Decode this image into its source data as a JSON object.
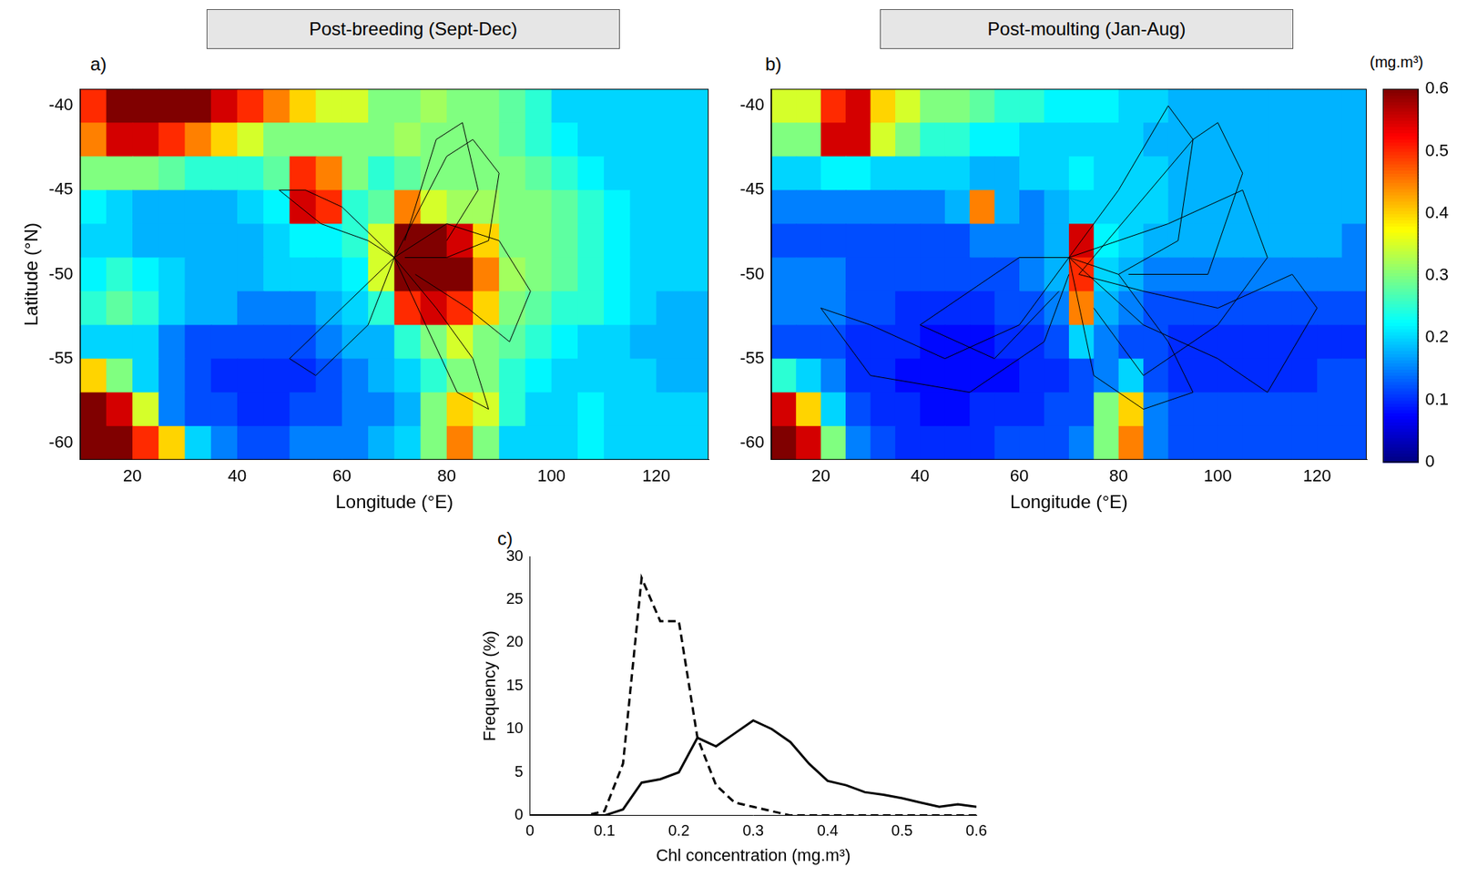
{
  "chart_data": [
    {
      "type": "heatmap",
      "panel": "a)",
      "title": "Post-breeding (Sept-Dec)",
      "x_label": "Longitude (°E)",
      "y_label": "Latitude (°N)",
      "xlim": [
        10,
        130
      ],
      "xticks": [
        20,
        40,
        60,
        80,
        100,
        120
      ],
      "ylim": [
        -61,
        -39
      ],
      "yticks": [
        -40,
        -45,
        -50,
        -55,
        -60
      ],
      "grid": false,
      "lon_edges": [
        10,
        15,
        20,
        25,
        30,
        35,
        40,
        45,
        50,
        55,
        60,
        65,
        70,
        75,
        80,
        85,
        90,
        95,
        100,
        105,
        110,
        115,
        120,
        125,
        130
      ],
      "lat_edges": [
        -39,
        -41,
        -43,
        -45,
        -47,
        -49,
        -51,
        -53,
        -55,
        -57,
        -59,
        -61
      ],
      "cells": [
        [
          0.5,
          0.6,
          0.6,
          0.6,
          0.6,
          0.55,
          0.5,
          0.45,
          0.4,
          0.35,
          0.35,
          0.3,
          0.3,
          0.32,
          0.3,
          0.3,
          0.28,
          0.25,
          0.2,
          0.2,
          0.2,
          0.2,
          0.2,
          0.2
        ],
        [
          0.45,
          0.55,
          0.55,
          0.5,
          0.45,
          0.4,
          0.35,
          0.3,
          0.3,
          0.3,
          0.3,
          0.3,
          0.32,
          0.3,
          0.3,
          0.3,
          0.28,
          0.25,
          0.22,
          0.2,
          0.2,
          0.2,
          0.2,
          0.2
        ],
        [
          0.3,
          0.3,
          0.3,
          0.28,
          0.25,
          0.25,
          0.25,
          0.28,
          0.5,
          0.45,
          0.3,
          0.25,
          0.28,
          0.3,
          0.3,
          0.3,
          0.3,
          0.28,
          0.25,
          0.22,
          0.2,
          0.2,
          0.2,
          0.2
        ],
        [
          0.22,
          0.2,
          0.18,
          0.18,
          0.18,
          0.18,
          0.2,
          0.22,
          0.55,
          0.5,
          0.25,
          0.28,
          0.45,
          0.35,
          0.32,
          0.32,
          0.3,
          0.3,
          0.28,
          0.25,
          0.22,
          0.2,
          0.2,
          0.2
        ],
        [
          0.2,
          0.2,
          0.18,
          0.18,
          0.18,
          0.18,
          0.18,
          0.2,
          0.22,
          0.22,
          0.25,
          0.35,
          0.6,
          0.6,
          0.55,
          0.4,
          0.3,
          0.3,
          0.28,
          0.25,
          0.22,
          0.2,
          0.2,
          0.2
        ],
        [
          0.22,
          0.25,
          0.22,
          0.2,
          0.18,
          0.18,
          0.18,
          0.2,
          0.2,
          0.2,
          0.22,
          0.35,
          0.6,
          0.6,
          0.6,
          0.45,
          0.32,
          0.3,
          0.28,
          0.25,
          0.22,
          0.2,
          0.2,
          0.2
        ],
        [
          0.25,
          0.28,
          0.25,
          0.2,
          0.18,
          0.18,
          0.15,
          0.15,
          0.15,
          0.18,
          0.2,
          0.25,
          0.5,
          0.55,
          0.5,
          0.4,
          0.3,
          0.28,
          0.25,
          0.25,
          0.22,
          0.2,
          0.18,
          0.18
        ],
        [
          0.2,
          0.2,
          0.2,
          0.15,
          0.12,
          0.12,
          0.12,
          0.12,
          0.12,
          0.15,
          0.18,
          0.18,
          0.25,
          0.3,
          0.35,
          0.3,
          0.28,
          0.25,
          0.22,
          0.2,
          0.2,
          0.18,
          0.18,
          0.18
        ],
        [
          0.4,
          0.3,
          0.2,
          0.15,
          0.12,
          0.1,
          0.1,
          0.1,
          0.1,
          0.12,
          0.15,
          0.18,
          0.2,
          0.25,
          0.3,
          0.3,
          0.25,
          0.22,
          0.2,
          0.2,
          0.2,
          0.2,
          0.18,
          0.18
        ],
        [
          0.6,
          0.55,
          0.35,
          0.15,
          0.12,
          0.12,
          0.1,
          0.1,
          0.12,
          0.12,
          0.15,
          0.15,
          0.18,
          0.3,
          0.4,
          0.35,
          0.25,
          0.2,
          0.2,
          0.22,
          0.2,
          0.2,
          0.2,
          0.2
        ],
        [
          0.6,
          0.6,
          0.5,
          0.4,
          0.2,
          0.15,
          0.12,
          0.12,
          0.15,
          0.15,
          0.15,
          0.18,
          0.2,
          0.3,
          0.45,
          0.3,
          0.2,
          0.2,
          0.2,
          0.22,
          0.2,
          0.2,
          0.2,
          0.2
        ]
      ],
      "tracks_color": "#000000",
      "tracks": [
        [
          [
            70,
            -49
          ],
          [
            75,
            -46
          ],
          [
            80,
            -43
          ],
          [
            85,
            -42
          ],
          [
            90,
            -44
          ],
          [
            88,
            -48
          ],
          [
            80,
            -49
          ],
          [
            72,
            -49
          ]
        ],
        [
          [
            70,
            -49
          ],
          [
            78,
            -52
          ],
          [
            85,
            -55
          ],
          [
            88,
            -58
          ],
          [
            82,
            -57
          ],
          [
            76,
            -53
          ],
          [
            70,
            -49
          ]
        ],
        [
          [
            70,
            -49
          ],
          [
            60,
            -46
          ],
          [
            53,
            -45
          ],
          [
            48,
            -45
          ],
          [
            56,
            -47
          ],
          [
            65,
            -48
          ],
          [
            70,
            -49
          ]
        ],
        [
          [
            70,
            -49
          ],
          [
            65,
            -53
          ],
          [
            55,
            -56
          ],
          [
            50,
            -55
          ],
          [
            60,
            -52
          ],
          [
            70,
            -49
          ]
        ],
        [
          [
            70,
            -49
          ],
          [
            80,
            -47
          ],
          [
            90,
            -48
          ],
          [
            96,
            -51
          ],
          [
            92,
            -54
          ],
          [
            84,
            -52
          ],
          [
            74,
            -50
          ]
        ],
        [
          [
            72,
            -48
          ],
          [
            78,
            -42
          ],
          [
            83,
            -41
          ],
          [
            86,
            -45
          ],
          [
            80,
            -48
          ]
        ]
      ]
    },
    {
      "type": "heatmap",
      "panel": "b)",
      "title": "Post-moulting (Jan-Aug)",
      "x_label": "Longitude (°E)",
      "xlim": [
        10,
        130
      ],
      "xticks": [
        20,
        40,
        60,
        80,
        100,
        120
      ],
      "ylim": [
        -61,
        -39
      ],
      "yticks": [
        -40,
        -45,
        -50,
        -55,
        -60
      ],
      "grid": false,
      "lon_edges": [
        10,
        15,
        20,
        25,
        30,
        35,
        40,
        45,
        50,
        55,
        60,
        65,
        70,
        75,
        80,
        85,
        90,
        95,
        100,
        105,
        110,
        115,
        120,
        125,
        130
      ],
      "lat_edges": [
        -39,
        -41,
        -43,
        -45,
        -47,
        -49,
        -51,
        -53,
        -55,
        -57,
        -59,
        -61
      ],
      "cells": [
        [
          0.35,
          0.35,
          0.5,
          0.55,
          0.4,
          0.35,
          0.3,
          0.3,
          0.28,
          0.25,
          0.25,
          0.22,
          0.22,
          0.22,
          0.2,
          0.2,
          0.18,
          0.18,
          0.18,
          0.18,
          0.18,
          0.18,
          0.18,
          0.18
        ],
        [
          0.3,
          0.3,
          0.55,
          0.55,
          0.35,
          0.3,
          0.25,
          0.25,
          0.22,
          0.22,
          0.2,
          0.2,
          0.2,
          0.2,
          0.2,
          0.18,
          0.18,
          0.18,
          0.18,
          0.18,
          0.18,
          0.18,
          0.18,
          0.18
        ],
        [
          0.2,
          0.2,
          0.22,
          0.22,
          0.2,
          0.2,
          0.2,
          0.2,
          0.18,
          0.18,
          0.2,
          0.2,
          0.22,
          0.2,
          0.2,
          0.2,
          0.18,
          0.18,
          0.18,
          0.18,
          0.18,
          0.18,
          0.18,
          0.18
        ],
        [
          0.15,
          0.15,
          0.15,
          0.15,
          0.15,
          0.15,
          0.15,
          0.18,
          0.45,
          0.18,
          0.15,
          0.18,
          0.2,
          0.2,
          0.2,
          0.2,
          0.18,
          0.18,
          0.18,
          0.18,
          0.18,
          0.18,
          0.18,
          0.18
        ],
        [
          0.12,
          0.12,
          0.12,
          0.12,
          0.12,
          0.12,
          0.12,
          0.12,
          0.15,
          0.15,
          0.15,
          0.18,
          0.55,
          0.22,
          0.2,
          0.18,
          0.18,
          0.18,
          0.18,
          0.18,
          0.18,
          0.18,
          0.18,
          0.15
        ],
        [
          0.15,
          0.15,
          0.15,
          0.12,
          0.12,
          0.12,
          0.12,
          0.12,
          0.12,
          0.12,
          0.15,
          0.18,
          0.5,
          0.2,
          0.18,
          0.15,
          0.15,
          0.15,
          0.15,
          0.15,
          0.15,
          0.15,
          0.15,
          0.15
        ],
        [
          0.15,
          0.15,
          0.15,
          0.12,
          0.12,
          0.1,
          0.1,
          0.1,
          0.1,
          0.12,
          0.12,
          0.15,
          0.45,
          0.18,
          0.15,
          0.12,
          0.12,
          0.12,
          0.12,
          0.12,
          0.12,
          0.12,
          0.12,
          0.12
        ],
        [
          0.12,
          0.12,
          0.12,
          0.1,
          0.1,
          0.1,
          0.08,
          0.08,
          0.08,
          0.1,
          0.1,
          0.12,
          0.2,
          0.15,
          0.12,
          0.12,
          0.1,
          0.1,
          0.1,
          0.1,
          0.1,
          0.1,
          0.1,
          0.1
        ],
        [
          0.25,
          0.2,
          0.15,
          0.1,
          0.1,
          0.08,
          0.08,
          0.08,
          0.08,
          0.08,
          0.1,
          0.1,
          0.12,
          0.15,
          0.2,
          0.12,
          0.1,
          0.1,
          0.1,
          0.1,
          0.1,
          0.1,
          0.12,
          0.12
        ],
        [
          0.55,
          0.4,
          0.2,
          0.12,
          0.1,
          0.1,
          0.08,
          0.08,
          0.1,
          0.1,
          0.1,
          0.12,
          0.12,
          0.3,
          0.4,
          0.15,
          0.12,
          0.12,
          0.12,
          0.12,
          0.12,
          0.12,
          0.12,
          0.12
        ],
        [
          0.6,
          0.55,
          0.3,
          0.15,
          0.12,
          0.1,
          0.1,
          0.1,
          0.1,
          0.12,
          0.12,
          0.12,
          0.15,
          0.3,
          0.45,
          0.15,
          0.12,
          0.12,
          0.12,
          0.12,
          0.12,
          0.12,
          0.12,
          0.12
        ]
      ],
      "tracks_color": "#000000",
      "tracks": [
        [
          [
            70,
            -49
          ],
          [
            80,
            -45
          ],
          [
            90,
            -40
          ],
          [
            95,
            -42
          ],
          [
            92,
            -48
          ],
          [
            80,
            -50
          ],
          [
            70,
            -49
          ]
        ],
        [
          [
            70,
            -49
          ],
          [
            85,
            -53
          ],
          [
            100,
            -55
          ],
          [
            110,
            -57
          ],
          [
            120,
            -52
          ],
          [
            115,
            -50
          ],
          [
            100,
            -52
          ],
          [
            85,
            -51
          ],
          [
            72,
            -50
          ]
        ],
        [
          [
            70,
            -49
          ],
          [
            60,
            -53
          ],
          [
            45,
            -55
          ],
          [
            30,
            -53
          ],
          [
            20,
            -52
          ],
          [
            30,
            -56
          ],
          [
            50,
            -57
          ],
          [
            65,
            -54
          ],
          [
            70,
            -50
          ]
        ],
        [
          [
            70,
            -49
          ],
          [
            90,
            -47
          ],
          [
            105,
            -45
          ],
          [
            110,
            -49
          ],
          [
            100,
            -53
          ],
          [
            85,
            -56
          ],
          [
            75,
            -52
          ]
        ],
        [
          [
            70,
            -49
          ],
          [
            75,
            -56
          ],
          [
            85,
            -58
          ],
          [
            95,
            -57
          ],
          [
            90,
            -54
          ],
          [
            80,
            -50
          ]
        ],
        [
          [
            70,
            -49
          ],
          [
            60,
            -49
          ],
          [
            50,
            -51
          ],
          [
            40,
            -53
          ],
          [
            55,
            -55
          ],
          [
            68,
            -51
          ]
        ],
        [
          [
            72,
            -50
          ],
          [
            95,
            -42
          ],
          [
            100,
            -41
          ],
          [
            105,
            -44
          ],
          [
            98,
            -50
          ],
          [
            82,
            -50
          ]
        ]
      ],
      "colorbar": {
        "label": "(mg.m³)",
        "range": [
          0,
          0.6
        ],
        "ticks": [
          0,
          0.1,
          0.2,
          0.3,
          0.4,
          0.5,
          0.6
        ]
      }
    },
    {
      "type": "line",
      "panel": "c)",
      "x_label": "Chl concentration (mg.m³)",
      "y_label": "Frequency (%)",
      "xlim": [
        0,
        0.6
      ],
      "xticks": [
        0,
        0.1,
        0.2,
        0.3,
        0.4,
        0.5,
        0.6
      ],
      "ylim": [
        0,
        30
      ],
      "yticks": [
        0,
        5,
        10,
        15,
        20,
        25,
        30
      ],
      "grid": false,
      "x": [
        0,
        0.025,
        0.05,
        0.075,
        0.1,
        0.125,
        0.15,
        0.175,
        0.2,
        0.225,
        0.25,
        0.275,
        0.3,
        0.325,
        0.35,
        0.375,
        0.4,
        0.425,
        0.45,
        0.475,
        0.5,
        0.525,
        0.55,
        0.575,
        0.6
      ],
      "series": [
        {
          "color": "#000000",
          "line_style": "dashed",
          "values": [
            0,
            0,
            0,
            0,
            0.5,
            6,
            27.5,
            22.5,
            22.5,
            9,
            3.5,
            1.5,
            1,
            0.5,
            0,
            0,
            0,
            0,
            0,
            0,
            0,
            0,
            0,
            0,
            0
          ]
        },
        {
          "color": "#000000",
          "line_style": "solid",
          "values": [
            0,
            0,
            0,
            0,
            0,
            0.7,
            3.8,
            4.2,
            5,
            9,
            8,
            9.5,
            11,
            10,
            8.5,
            6,
            4,
            3.5,
            2.7,
            2.4,
            2,
            1.5,
            1,
            1.3,
            1
          ]
        }
      ]
    }
  ]
}
